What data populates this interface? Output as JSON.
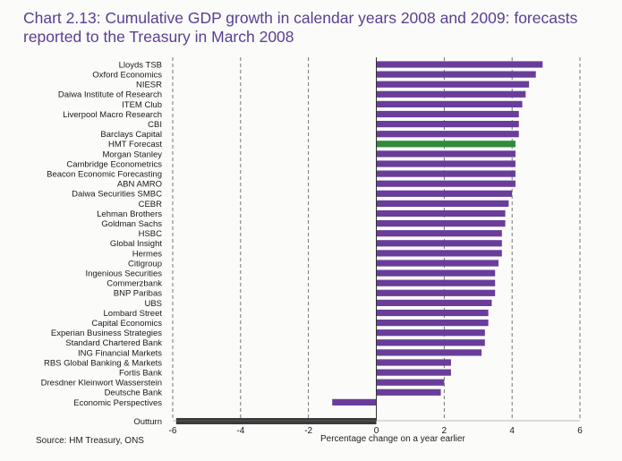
{
  "title": "Chart 2.13: Cumulative GDP growth in calendar years 2008 and 2009: forecasts reported to the Treasury in March 2008",
  "source": "Source: HM Treasury, ONS",
  "colors": {
    "forecast": "#6a3d9a",
    "hmt": "#2e8b3a",
    "outturn": "#3a3a3a",
    "title": "#5b3f8f"
  },
  "chart_data": {
    "type": "bar",
    "orientation": "horizontal",
    "title": "Chart 2.13: Cumulative GDP growth in calendar years 2008 and 2009: forecasts reported to the Treasury in March 2008",
    "xlabel": "Percentage change on a year earlier",
    "ylabel": "",
    "xlim": [
      -6,
      6
    ],
    "xticks": [
      -6,
      -4,
      -2,
      0,
      2,
      4,
      6
    ],
    "grid": "vertical dashed",
    "categories": [
      "Lloyds TSB",
      "Oxford Economics",
      "NIESR",
      "Daiwa Institute of Research",
      "ITEM Club",
      "Liverpool Macro Research",
      "CBI",
      "Barclays Capital",
      "HMT Forecast",
      "Morgan Stanley",
      "Cambridge Econometrics",
      "Beacon Economic Forecasting",
      "ABN AMRO",
      "Daiwa Securities SMBC",
      "CEBR",
      "Lehman Brothers",
      "Goldman Sachs",
      "HSBC",
      "Global Insight",
      "Hermes",
      "Citigroup",
      "Ingenious Securities",
      "Commerzbank",
      "BNP Paribas",
      "UBS",
      "Lombard Street",
      "Capital Economics",
      "Experian Business Strategies",
      "Standard Chartered Bank",
      "ING Financial Markets",
      "RBS Global Banking & Markets",
      "Fortis Bank",
      "Dresdner Kleinwort Wasserstein",
      "Deutsche Bank",
      "Economic Perspectives",
      "Outturn"
    ],
    "values": [
      4.9,
      4.7,
      4.5,
      4.4,
      4.3,
      4.2,
      4.2,
      4.2,
      4.1,
      4.1,
      4.1,
      4.1,
      4.1,
      4.0,
      3.9,
      3.8,
      3.8,
      3.7,
      3.7,
      3.7,
      3.6,
      3.5,
      3.5,
      3.5,
      3.4,
      3.3,
      3.3,
      3.2,
      3.2,
      3.1,
      2.2,
      2.2,
      2.0,
      1.9,
      -1.3,
      -5.9
    ],
    "highlight": {
      "HMT Forecast": "hmt",
      "Outturn": "outturn"
    }
  }
}
